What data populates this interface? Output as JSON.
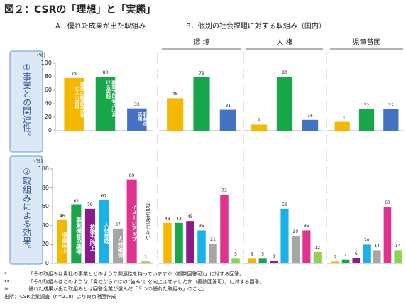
{
  "title": "図２：CSRの「理想」と「実態」",
  "column_a": "A．優れた成果が出た取組み",
  "column_b": "B．個別の社会課題に対する取組み（国内）",
  "subheaders": [
    "環 境",
    "人 権",
    "児童貧困"
  ],
  "row_labels": [
    "①事業との関連性。",
    "②取組みによる効果。"
  ],
  "footnotes": [
    [
      "*",
      "「その取組みは貴社の事業とどのような関連性を持っていますか（複数回答可）」に対する回答。"
    ],
    [
      "**",
      "「その取組みはどのような『貴社ならではの“強み”』を向上させましたか（複数回答可）」に対する回答。"
    ],
    [
      "※",
      "優れた成果が出た取組みとは回答企業が選んだ「３つの優れた取組み」のこと。"
    ],
    [
      "出所：",
      "CSR企業調査（n=218）より東京財団作成"
    ]
  ],
  "chart_data": [
    {
      "type": "bar",
      "ylabel": "(%)",
      "categories": [
        "自社の製品及びサービスの活用",
        "事業プロセスにおける実践",
        "利益の活用"
      ],
      "values": [
        78,
        80,
        33
      ],
      "colors": [
        "#f5b800",
        "#17a64a",
        "#4472c4"
      ],
      "ylim": [
        0,
        100
      ],
      "yticks": [
        0,
        20,
        40,
        60,
        80,
        100
      ]
    },
    {
      "type": "bar",
      "categories": [
        null,
        null,
        null
      ],
      "values": [
        48,
        79,
        31
      ],
      "colors": [
        "#f5b800",
        "#17a64a",
        "#4472c4"
      ],
      "ylim": [
        0,
        100
      ]
    },
    {
      "type": "bar",
      "categories": [
        null,
        null,
        null
      ],
      "values": [
        9,
        80,
        16
      ],
      "colors": [
        "#f5b800",
        "#17a64a",
        "#4472c4"
      ],
      "ylim": [
        0,
        100
      ]
    },
    {
      "type": "bar",
      "categories": [
        null,
        null,
        null
      ],
      "values": [
        13,
        32,
        32
      ],
      "colors": [
        "#f5b800",
        "#17a64a",
        "#4472c4"
      ],
      "ylim": [
        0,
        100
      ]
    },
    {
      "type": "bar",
      "ylabel": "(%)",
      "categories": [
        "収益向上",
        "事業機会の獲得",
        "技術力向上",
        "人材育成",
        "人材確保",
        "イメージアップ",
        "効果を感じない"
      ],
      "values": [
        46,
        62,
        58,
        67,
        37,
        89,
        2
      ],
      "colors": [
        "#f5b800",
        "#17a64a",
        "#8b1a8b",
        "#1ab0e8",
        "#a6a6a6",
        "#e0338f",
        "#8fd34a"
      ],
      "ylim": [
        0,
        100
      ],
      "yticks": [
        0,
        20,
        40,
        60,
        80,
        100
      ]
    },
    {
      "type": "bar",
      "categories": [
        null,
        null,
        null,
        null,
        null,
        null,
        null
      ],
      "values": [
        43,
        43,
        45,
        35,
        21,
        73,
        5
      ],
      "colors": [
        "#f5b800",
        "#17a64a",
        "#8b1a8b",
        "#1ab0e8",
        "#a6a6a6",
        "#e0338f",
        "#8fd34a"
      ],
      "ylim": [
        0,
        100
      ]
    },
    {
      "type": "bar",
      "categories": [
        null,
        null,
        null,
        null,
        null,
        null,
        null
      ],
      "values": [
        5,
        5,
        3,
        58,
        29,
        35,
        12
      ],
      "colors": [
        "#f5b800",
        "#17a64a",
        "#8b1a8b",
        "#1ab0e8",
        "#a6a6a6",
        "#e0338f",
        "#8fd34a"
      ],
      "ylim": [
        0,
        100
      ]
    },
    {
      "type": "bar",
      "categories": [
        null,
        null,
        null,
        null,
        null,
        null,
        null
      ],
      "values": [
        2,
        4,
        6,
        20,
        14,
        60,
        14
      ],
      "colors": [
        "#f5b800",
        "#17a64a",
        "#8b1a8b",
        "#1ab0e8",
        "#a6a6a6",
        "#e0338f",
        "#8fd34a"
      ],
      "ylim": [
        0,
        100
      ]
    }
  ]
}
